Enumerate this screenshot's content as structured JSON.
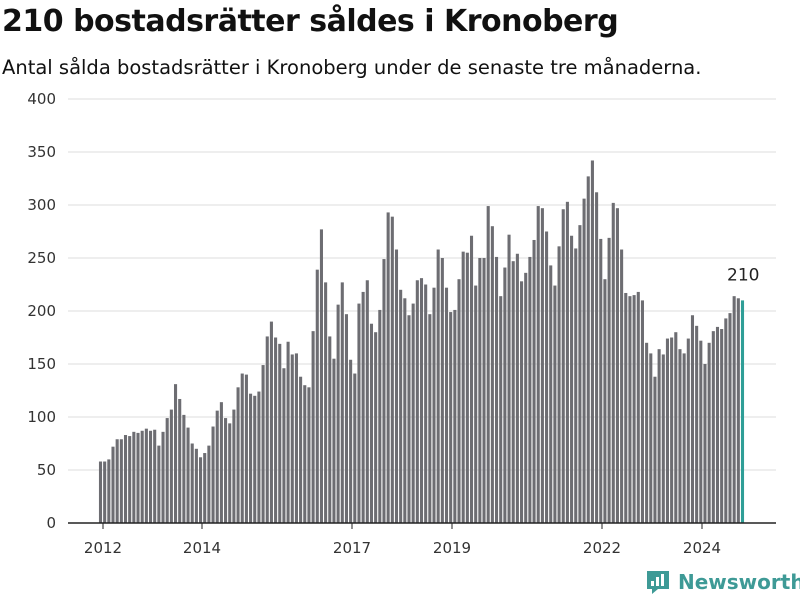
{
  "chart_data": {
    "type": "bar",
    "title": "210 bostadsrätter såldes i Kronoberg",
    "subtitle": "Antal sålda bostadsrätter i Kronoberg under de senaste tre månaderna.",
    "x_tick_labels": [
      "2012",
      "2014",
      "2017",
      "2019",
      "2022",
      "2024"
    ],
    "y_tick_labels": [
      "0",
      "50",
      "100",
      "150",
      "200",
      "250",
      "300",
      "350",
      "400"
    ],
    "ylim": [
      0,
      400
    ],
    "grid": true,
    "bar_color": "#6d6d72",
    "highlight_color": "#2f9e97",
    "highlight_label": "210",
    "values": [
      58,
      58,
      60,
      72,
      79,
      79,
      83,
      82,
      86,
      85,
      87,
      89,
      87,
      88,
      73,
      86,
      99,
      107,
      131,
      117,
      102,
      90,
      75,
      70,
      62,
      66,
      73,
      91,
      106,
      114,
      99,
      94,
      107,
      128,
      141,
      140,
      122,
      120,
      124,
      149,
      176,
      190,
      175,
      169,
      146,
      171,
      159,
      160,
      138,
      130,
      128,
      181,
      239,
      277,
      227,
      176,
      155,
      206,
      227,
      197,
      154,
      141,
      207,
      218,
      229,
      188,
      180,
      201,
      249,
      293,
      289,
      258,
      220,
      212,
      196,
      207,
      229,
      231,
      225,
      197,
      222,
      258,
      250,
      222,
      199,
      201,
      230,
      256,
      255,
      271,
      224,
      250,
      250,
      299,
      280,
      251,
      214,
      241,
      272,
      247,
      254,
      228,
      236,
      251,
      267,
      299,
      297,
      275,
      243,
      224,
      261,
      296,
      303,
      271,
      259,
      281,
      306,
      327,
      342,
      312,
      268,
      230,
      269,
      302,
      297,
      258,
      217,
      214,
      215,
      218,
      210,
      170,
      160,
      138,
      164,
      159,
      174,
      175,
      180,
      164,
      160,
      174,
      196,
      186,
      172,
      150,
      170,
      181,
      185,
      183,
      193,
      198,
      214,
      212,
      210
    ]
  },
  "brand": {
    "name": "Newsworthy",
    "color": "#3e9a96"
  }
}
